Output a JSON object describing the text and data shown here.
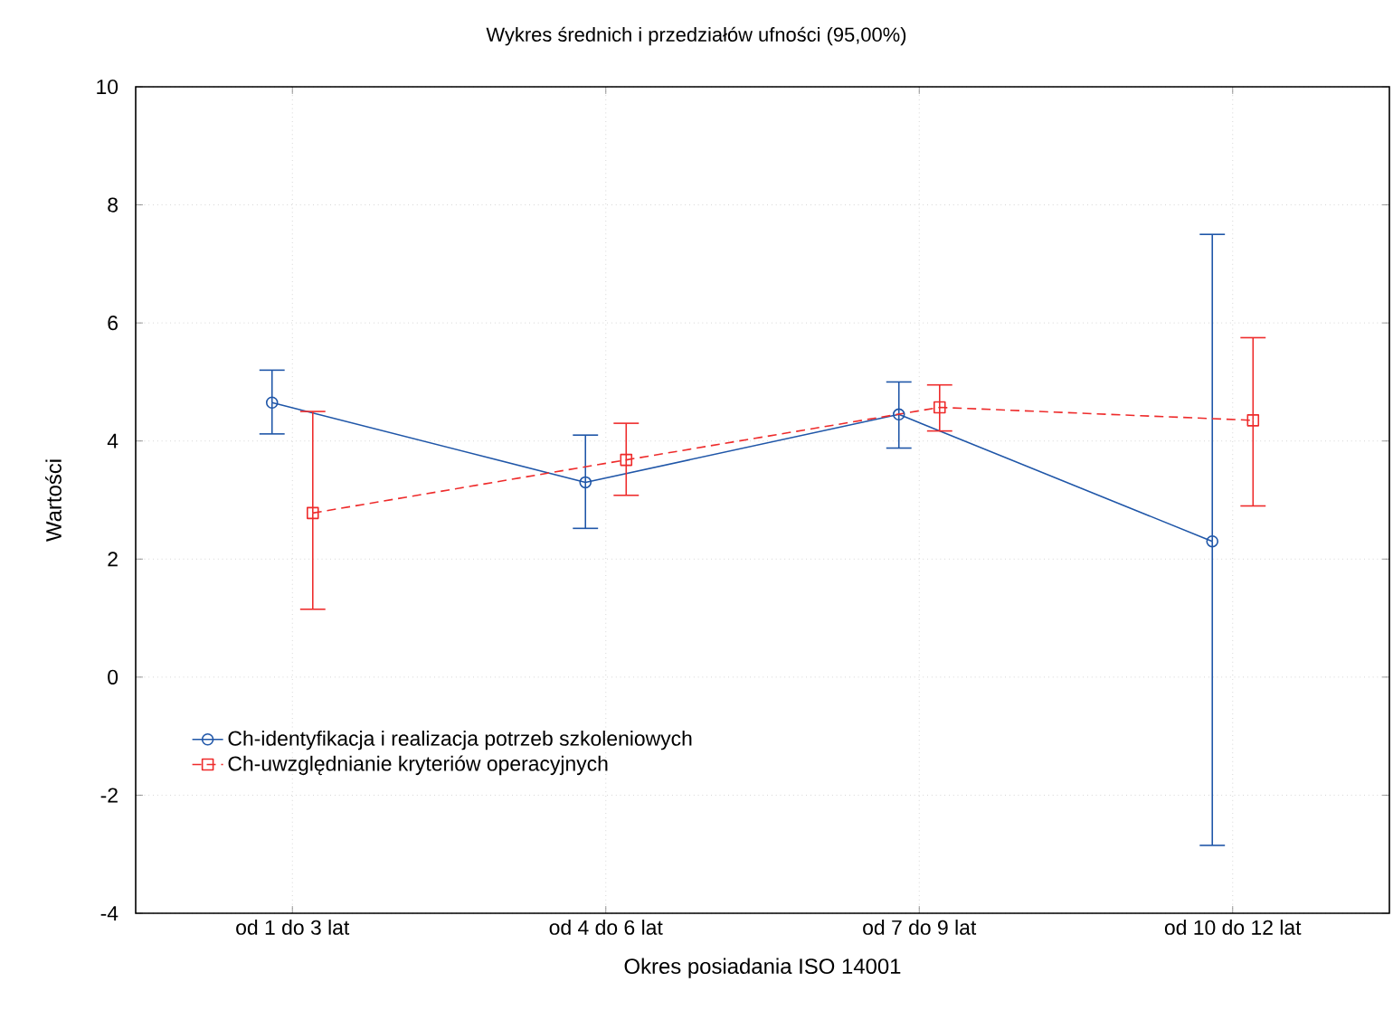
{
  "chart_data": {
    "type": "line",
    "title": "Wykres średnich i przedziałów ufności (95,00%)",
    "xlabel": "Okres posiadania ISO 14001",
    "ylabel": "Wartości",
    "categories": [
      "od 1 do 3 lat",
      "od 4 do 6 lat",
      "od 7 do 9 lat",
      "od 10 do 12 lat"
    ],
    "series": [
      {
        "name": "Ch-identyfikacja i realizacja potrzeb szkoleniowych",
        "color": "#1f56a8",
        "marker": "circle",
        "line_style": "solid",
        "values": [
          4.65,
          3.3,
          4.45,
          2.3
        ],
        "errors": [
          [
            4.12,
            5.2
          ],
          [
            2.52,
            4.1
          ],
          [
            3.88,
            5.0
          ],
          [
            -2.85,
            7.5
          ]
        ]
      },
      {
        "name": "Ch-uwzględnianie kryteriów operacyjnych",
        "color": "#ee2b2b",
        "marker": "square",
        "line_style": "dashed",
        "values": [
          2.78,
          3.68,
          4.57,
          4.35
        ],
        "errors": [
          [
            1.15,
            4.5
          ],
          [
            3.08,
            4.3
          ],
          [
            4.17,
            4.95
          ],
          [
            2.9,
            5.75
          ]
        ]
      }
    ],
    "ylim": [
      -4,
      10
    ],
    "yticks": [
      -4,
      -2,
      0,
      2,
      4,
      6,
      8,
      10
    ],
    "grid": true,
    "legend": "bottom left"
  }
}
